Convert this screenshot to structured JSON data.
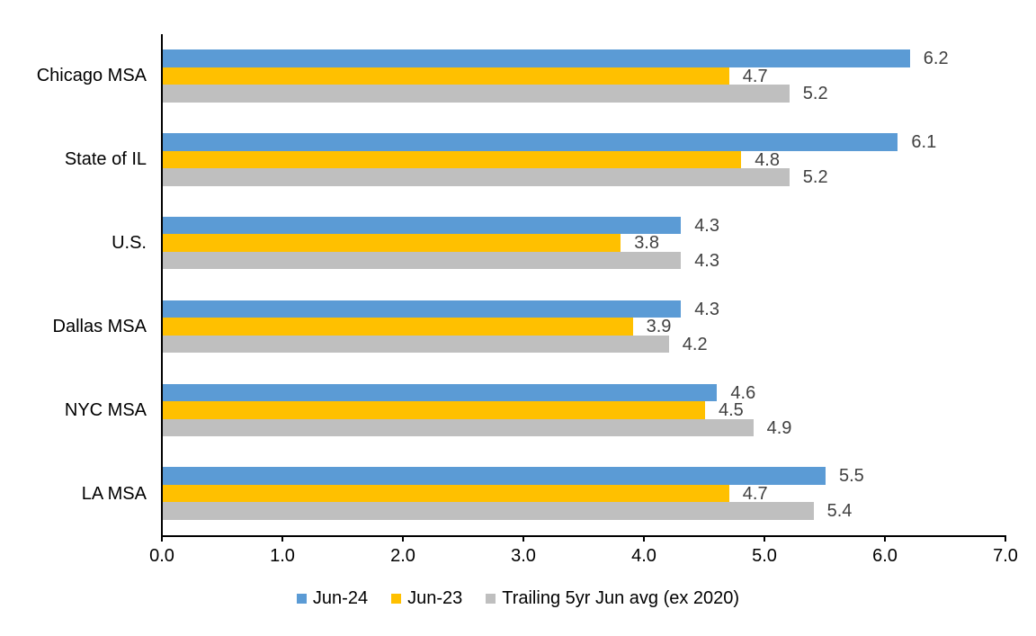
{
  "chart_data": {
    "type": "bar",
    "orientation": "horizontal",
    "title": "",
    "xlabel": "",
    "ylabel": "",
    "xlim": [
      0,
      7
    ],
    "x_tick_labels": [
      "0.0",
      "1.0",
      "2.0",
      "3.0",
      "4.0",
      "5.0",
      "6.0",
      "7.0"
    ],
    "grid": false,
    "legend_position": "bottom-center",
    "value_labels": true,
    "value_label_decimals": 1,
    "categories": [
      "Chicago MSA",
      "State of IL",
      "U.S.",
      "Dallas MSA",
      "NYC MSA",
      "LA MSA"
    ],
    "series": [
      {
        "name": "Jun-24",
        "color": "#5B9BD5",
        "values": [
          6.2,
          6.1,
          4.3,
          4.3,
          4.6,
          5.5
        ]
      },
      {
        "name": "Jun-23",
        "color": "#FFC000",
        "values": [
          4.7,
          4.8,
          3.8,
          3.9,
          4.5,
          4.7
        ]
      },
      {
        "name": "Trailing 5yr Jun avg (ex 2020)",
        "color": "#BFBFBF",
        "values": [
          5.2,
          5.2,
          4.3,
          4.2,
          4.9,
          5.4
        ]
      }
    ]
  },
  "colors": {
    "axis": "#000000",
    "value_label": "#404040",
    "text": "#000000",
    "background": "#FFFFFF"
  }
}
